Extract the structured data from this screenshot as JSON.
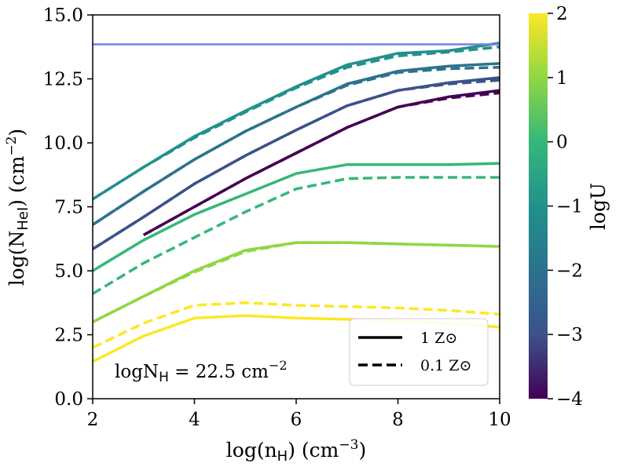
{
  "chart_data": {
    "type": "line",
    "xlabel": "log(nH) (cm−3)",
    "ylabel": "log(NHeI) (cm−2)",
    "xlim": [
      2,
      10
    ],
    "ylim": [
      0,
      15
    ],
    "x_ticks": [
      "2",
      "4",
      "6",
      "8",
      "10"
    ],
    "y_ticks": [
      "0.0",
      "2.5",
      "5.0",
      "7.5",
      "10.0",
      "12.5",
      "15.0"
    ],
    "reference_line": {
      "y": 13.85,
      "color": "#7b7bea"
    },
    "colorbar": {
      "label": "logU",
      "range": [
        -4,
        2
      ],
      "ticks": [
        "−4",
        "−3",
        "−2",
        "−1",
        "0",
        "1",
        "2"
      ]
    },
    "annotation": "logNH = 22.5 cm−2",
    "legend": {
      "placement": "bottom-right",
      "entries": [
        {
          "label": "1 Z⊙",
          "style": "solid"
        },
        {
          "label": "0.1 Z⊙",
          "style": "dashed"
        }
      ]
    },
    "x": [
      2,
      3,
      4,
      5,
      6,
      7,
      8,
      9,
      10
    ],
    "series": [
      {
        "name": "logU=-4, 1 Zsun",
        "logU": -4,
        "style": "solid",
        "color": "#440154",
        "values": [
          null,
          6.4,
          7.5,
          8.6,
          9.6,
          10.6,
          11.4,
          11.8,
          12.05
        ]
      },
      {
        "name": "logU=-4, 0.1 Zsun",
        "logU": -4,
        "style": "dashed",
        "color": "#440154",
        "values": [
          null,
          6.4,
          7.5,
          8.6,
          9.6,
          10.6,
          11.4,
          11.75,
          11.95
        ]
      },
      {
        "name": "logU=-3, 1 Zsun",
        "logU": -3,
        "style": "solid",
        "color": "#3b528b",
        "values": [
          5.85,
          7.1,
          8.4,
          9.5,
          10.5,
          11.45,
          12.05,
          12.35,
          12.55
        ]
      },
      {
        "name": "logU=-3, 0.1 Zsun",
        "logU": -3,
        "style": "dashed",
        "color": "#3b528b",
        "values": [
          5.85,
          7.1,
          8.4,
          9.5,
          10.5,
          11.45,
          12.05,
          12.3,
          12.45
        ]
      },
      {
        "name": "logU=-2, 1 Zsun",
        "logU": -2,
        "style": "solid",
        "color": "#2c728e",
        "values": [
          6.8,
          8.1,
          9.35,
          10.45,
          11.4,
          12.3,
          12.8,
          13.0,
          13.1
        ]
      },
      {
        "name": "logU=-2, 0.1 Zsun",
        "logU": -2,
        "style": "dashed",
        "color": "#2c728e",
        "values": [
          6.8,
          8.1,
          9.35,
          10.45,
          11.4,
          12.25,
          12.75,
          12.9,
          12.95
        ]
      },
      {
        "name": "logU=-1, 1 Zsun",
        "logU": -1,
        "style": "solid",
        "color": "#21918c",
        "values": [
          7.8,
          9.05,
          10.25,
          11.25,
          12.2,
          13.05,
          13.5,
          13.6,
          13.9
        ]
      },
      {
        "name": "logU=-1, 0.1 Zsun",
        "logU": -1,
        "style": "dashed",
        "color": "#21918c",
        "values": [
          7.8,
          9.05,
          10.2,
          11.2,
          12.15,
          12.95,
          13.4,
          13.55,
          13.75
        ]
      },
      {
        "name": "logU=0, 1 Zsun",
        "logU": 0,
        "style": "solid",
        "color": "#35b779",
        "values": [
          5.0,
          6.2,
          7.2,
          8.0,
          8.8,
          9.15,
          9.15,
          9.15,
          9.2
        ]
      },
      {
        "name": "logU=0, 0.1 Zsun",
        "logU": 0,
        "style": "dashed",
        "color": "#35b779",
        "values": [
          4.1,
          5.3,
          6.3,
          7.3,
          8.2,
          8.6,
          8.65,
          8.65,
          8.65
        ]
      },
      {
        "name": "logU=1, 1 Zsun",
        "logU": 1,
        "style": "solid",
        "color": "#90d743",
        "values": [
          3.0,
          4.0,
          5.0,
          5.8,
          6.1,
          6.1,
          6.05,
          6.0,
          5.95
        ]
      },
      {
        "name": "logU=1, 0.1 Zsun",
        "logU": 1,
        "style": "dashed",
        "color": "#90d743",
        "values": [
          3.0,
          4.0,
          4.95,
          5.75,
          6.1,
          6.1,
          6.05,
          6.0,
          5.95
        ]
      },
      {
        "name": "logU=2, 1 Zsun",
        "logU": 2,
        "style": "solid",
        "color": "#fde725",
        "values": [
          1.45,
          2.45,
          3.15,
          3.25,
          3.15,
          3.1,
          3.05,
          2.95,
          2.8
        ]
      },
      {
        "name": "logU=2, 0.1 Zsun",
        "logU": 2,
        "style": "dashed",
        "color": "#fde725",
        "values": [
          2.0,
          2.95,
          3.65,
          3.75,
          3.65,
          3.6,
          3.55,
          3.45,
          3.3
        ]
      }
    ]
  }
}
